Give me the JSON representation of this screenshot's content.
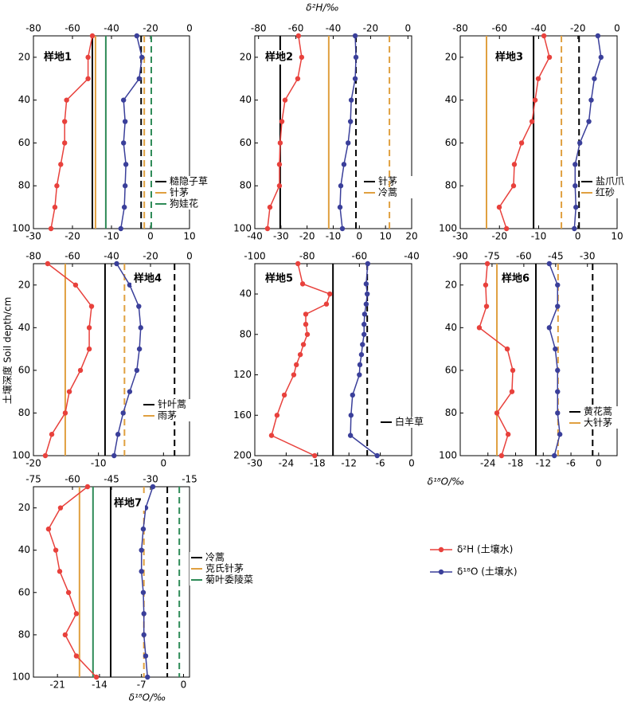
{
  "figure": {
    "top_axis_label": "δ²H/‰",
    "bottom_axis_label": "δ¹⁸O/‰",
    "y_axis_label": "土壤深度 Soil depth/cm",
    "legend": [
      {
        "name": "δ²H (土壤水)",
        "color": "#e8413c"
      },
      {
        "name": "δ¹⁸O (土壤水)",
        "color": "#3a3f9a"
      }
    ]
  },
  "chart_data": [
    {
      "type": "line",
      "title": "样地1",
      "xlim": [
        -30,
        10
      ],
      "xticks": [
        -30,
        -20,
        -10,
        0,
        10
      ],
      "x2lim": [
        -80,
        0
      ],
      "x2ticks": [
        -80,
        -60,
        -40,
        -20,
        0
      ],
      "ylim": [
        10,
        100
      ],
      "yticks": [
        20,
        40,
        60,
        80,
        100
      ],
      "y": [
        10,
        20,
        30,
        40,
        50,
        60,
        70,
        80,
        90,
        100
      ],
      "series": [
        {
          "color": "#e8413c",
          "axis": "x2",
          "values": [
            -49.8,
            -52,
            -52,
            -63,
            -64,
            -64,
            -66,
            -68,
            -69,
            -71
          ]
        },
        {
          "color": "#3a3f9a",
          "axis": "x",
          "values": [
            -3.5,
            -2.2,
            -2.9,
            -6.9,
            -6.5,
            -6.9,
            -6.3,
            -6.5,
            -6.7,
            -7.6
          ]
        }
      ],
      "plants": [
        {
          "name": "糙隐子草",
          "color": "#000000",
          "h": -49.8,
          "o": -2.4
        },
        {
          "name": "针茅",
          "color": "#e0a040",
          "h": -48.2,
          "o": -1.6
        },
        {
          "name": "狗娃花",
          "color": "#2e8b57",
          "h": -42.9,
          "o": 0.2
        }
      ]
    },
    {
      "type": "line",
      "title": "样地2",
      "xlim": [
        -40,
        20
      ],
      "xticks": [
        -40,
        -30,
        -20,
        -10,
        0,
        10,
        20
      ],
      "x2lim": [
        -82,
        2
      ],
      "x2ticks": [
        -80,
        -60,
        -40,
        -20,
        0
      ],
      "ylim": [
        10,
        100
      ],
      "yticks": [
        20,
        40,
        60,
        80,
        100
      ],
      "y": [
        10,
        20,
        30,
        40,
        50,
        60,
        70,
        80,
        90,
        100
      ],
      "series": [
        {
          "color": "#e8413c",
          "axis": "x2",
          "values": [
            -58.6,
            -56.9,
            -59,
            -65.8,
            -67.5,
            -68.4,
            -68.8,
            -68.8,
            -73.9,
            -75.2
          ]
        },
        {
          "color": "#3a3f9a",
          "axis": "x",
          "values": [
            -1.6,
            -1.3,
            -1.6,
            -3.1,
            -3.4,
            -4.3,
            -5.9,
            -7.1,
            -7.4,
            -6.5
          ]
        }
      ],
      "plants": [
        {
          "name": "针茅",
          "color": "#000000",
          "h": -68.4,
          "o": -1.3
        },
        {
          "name": "冷蒿",
          "color": "#e0a040",
          "h": -42.4,
          "o": 11.5
        }
      ]
    },
    {
      "type": "line",
      "title": "样地3",
      "xlim": [
        -30,
        10
      ],
      "xticks": [
        -30,
        -20,
        -10,
        0,
        10
      ],
      "x2lim": [
        -80,
        0
      ],
      "x2ticks": [
        -80,
        -60,
        -40,
        -20,
        0
      ],
      "ylim": [
        10,
        100
      ],
      "yticks": [
        20,
        40,
        60,
        80,
        100
      ],
      "y": [
        10,
        20,
        30,
        40,
        50,
        60,
        70,
        80,
        90,
        100
      ],
      "series": [
        {
          "color": "#e8413c",
          "axis": "x2",
          "values": [
            -37.3,
            -34.5,
            -40.2,
            -41.8,
            -43.4,
            -48.7,
            -52.4,
            -52.8,
            -60.1,
            -56.4
          ]
        },
        {
          "color": "#3a3f9a",
          "axis": "x",
          "values": [
            5.1,
            5.9,
            4.2,
            3.4,
            2.8,
            0.5,
            -0.7,
            -0.7,
            -0.5,
            -0.9
          ]
        }
      ],
      "plants": [
        {
          "name": "盐爪爪",
          "color": "#000000",
          "h": -42.6,
          "o": 0.3
        },
        {
          "name": "红砂",
          "color": "#e0a040",
          "h": -66.6,
          "o": -4.2
        }
      ]
    },
    {
      "type": "line",
      "title": "样地4",
      "xlim": [
        -20,
        4
      ],
      "xticks": [
        -20,
        -10,
        0
      ],
      "x2lim": [
        -80,
        0
      ],
      "x2ticks": [
        -80,
        -60,
        -40,
        -20,
        0
      ],
      "ylim": [
        10,
        100
      ],
      "yticks": [
        20,
        40,
        60,
        80,
        100
      ],
      "y": [
        10,
        20,
        30,
        40,
        50,
        60,
        70,
        80,
        90,
        100
      ],
      "series": [
        {
          "color": "#e8413c",
          "axis": "x2",
          "values": [
            -72.7,
            -58.4,
            -50.2,
            -51.4,
            -51.4,
            -55.9,
            -61.6,
            -63.7,
            -70.6,
            -73.9
          ]
        },
        {
          "color": "#3a3f9a",
          "axis": "x",
          "values": [
            -7.2,
            -5.2,
            -3.8,
            -3.5,
            -3.7,
            -4.1,
            -5.2,
            -6.2,
            -7,
            -7.6
          ]
        }
      ],
      "plants": [
        {
          "name": "针叶蒿",
          "color": "#000000",
          "h": -43.3,
          "o": 1.7
        },
        {
          "name": "雨茅",
          "color": "#e0a040",
          "h": -63.7,
          "o": -6
        }
      ]
    },
    {
      "type": "line",
      "title": "样地5",
      "xlim": [
        -30,
        0
      ],
      "xticks": [
        -30,
        -24,
        -18,
        -12,
        -6,
        0
      ],
      "x2lim": [
        -100,
        -40
      ],
      "x2ticks": [
        -100,
        -80,
        -60,
        -40
      ],
      "ylim": [
        10,
        200
      ],
      "yticks": [
        40,
        80,
        120,
        160,
        200
      ],
      "y": [
        10,
        30,
        40,
        50,
        60,
        70,
        80,
        90,
        100,
        110,
        120,
        140,
        160,
        180,
        200
      ],
      "series": [
        {
          "color": "#e8413c",
          "axis": "x2",
          "values": [
            -83.5,
            -81.7,
            -71.3,
            -72.6,
            -80.5,
            -80.5,
            -79.9,
            -81.4,
            -82.6,
            -84.1,
            -85.1,
            -88.7,
            -91.5,
            -93.6,
            -77.1
          ]
        },
        {
          "color": "#3a3f9a",
          "axis": "x",
          "values": [
            -8.4,
            -8.7,
            -8.5,
            -8.7,
            -9,
            -9.1,
            -9.1,
            -9.4,
            -9.6,
            -9.9,
            -10,
            -11.3,
            -11.6,
            -11.7,
            -6.6
          ]
        }
      ],
      "plants": [
        {
          "name": "白羊草",
          "color": "#000000",
          "h": -70.1,
          "o": -8.5
        }
      ]
    },
    {
      "type": "line",
      "title": "样地6",
      "xlim": [
        -30,
        4
      ],
      "xticks": [
        -24,
        -18,
        -12,
        -6,
        0
      ],
      "x2lim": [
        -90,
        -16
      ],
      "x2ticks": [
        -90,
        -75,
        -60,
        -45,
        -30
      ],
      "ylim": [
        10,
        100
      ],
      "yticks": [
        20,
        40,
        60,
        80,
        100
      ],
      "y": [
        10,
        20,
        30,
        40,
        50,
        60,
        70,
        80,
        90,
        100
      ],
      "series": [
        {
          "color": "#e8413c",
          "axis": "x2",
          "values": [
            -77.2,
            -78,
            -77.6,
            -81,
            -67.8,
            -65.2,
            -65.6,
            -72.7,
            -67.4,
            -70.5
          ]
        },
        {
          "color": "#3a3f9a",
          "axis": "x",
          "values": [
            -10.7,
            -8.9,
            -8.9,
            -10.7,
            -9.4,
            -8.9,
            -8.9,
            -8.9,
            -8.4,
            -9.6
          ]
        }
      ],
      "plants": [
        {
          "name": "黄花蒿",
          "color": "#000000",
          "h": -54.3,
          "o": -1.3
        },
        {
          "name": "大针茅",
          "color": "#e0a040",
          "h": -72.7,
          "o": -8.8
        }
      ]
    },
    {
      "type": "line",
      "title": "样地7",
      "xlim": [
        -25,
        1
      ],
      "xticks": [
        -21,
        -14,
        -7,
        0
      ],
      "x2lim": [
        -75,
        -15
      ],
      "x2ticks": [
        -75,
        -60,
        -45,
        -30,
        -15
      ],
      "ylim": [
        10,
        100
      ],
      "yticks": [
        20,
        40,
        60,
        80,
        100
      ],
      "y": [
        10,
        20,
        30,
        40,
        50,
        60,
        70,
        80,
        90,
        100
      ],
      "series": [
        {
          "color": "#e8413c",
          "axis": "x2",
          "values": [
            -54.2,
            -64.6,
            -69.2,
            -66.4,
            -64.9,
            -61.5,
            -58.5,
            -62.8,
            -58.5,
            -50.8
          ]
        },
        {
          "color": "#3a3f9a",
          "axis": "x",
          "values": [
            -5.1,
            -6.3,
            -6.7,
            -7,
            -7,
            -6.7,
            -6.6,
            -6.6,
            -6.3,
            -6
          ]
        }
      ],
      "plants": [
        {
          "name": "冷蒿",
          "color": "#000000",
          "h": -45.3,
          "o": -2.7
        },
        {
          "name": "克氏针茅",
          "color": "#e0a040",
          "h": -57.3,
          "o": -6.6
        },
        {
          "name": "菊叶委陵菜",
          "color": "#2e8b57",
          "h": -52.1,
          "o": -0.7
        }
      ]
    }
  ]
}
